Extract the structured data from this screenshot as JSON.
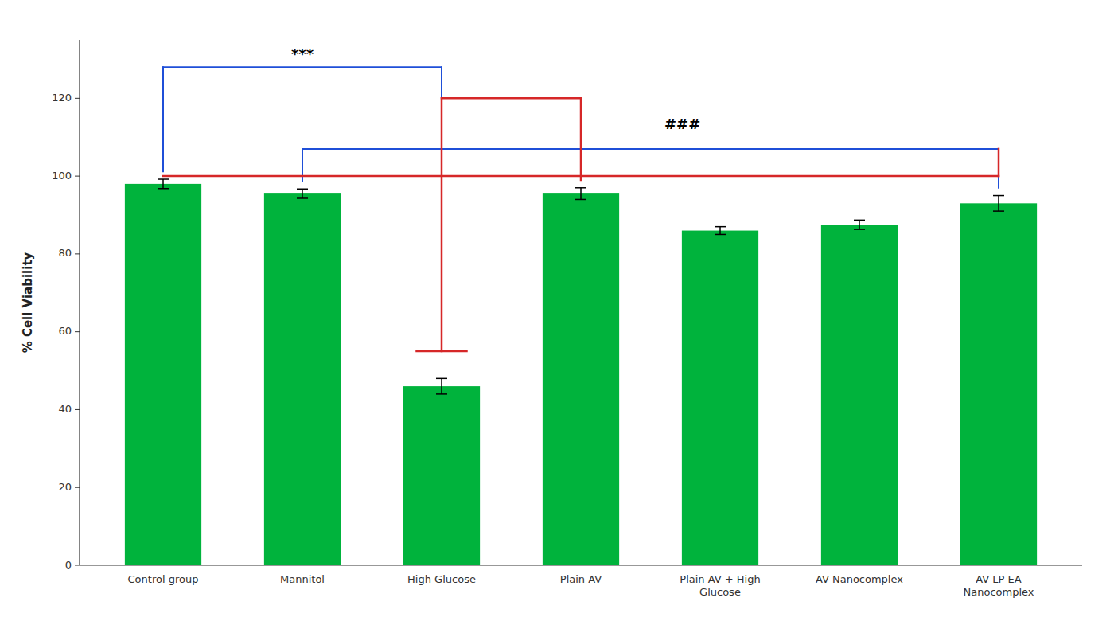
{
  "chart_data": {
    "type": "bar",
    "categories": [
      "Control group",
      "Mannitol",
      "High Glucose",
      "Plain AV",
      "Plain AV + High\nGlucose",
      "AV-Nanocomplex",
      "AV-LP-EA\nNanocomplex"
    ],
    "values": [
      98.0,
      95.5,
      46.0,
      95.5,
      86.0,
      87.5,
      93.0
    ],
    "errors": [
      1.2,
      1.2,
      2.0,
      1.5,
      1.0,
      1.2,
      2.0
    ],
    "color": "#00b33c",
    "ylabel": "% Cell Viability",
    "ylim": [
      0,
      135
    ],
    "yticks": [
      0,
      20,
      40,
      60,
      80,
      100,
      120
    ],
    "annotations": [
      "***",
      "###"
    ],
    "grid": false
  }
}
